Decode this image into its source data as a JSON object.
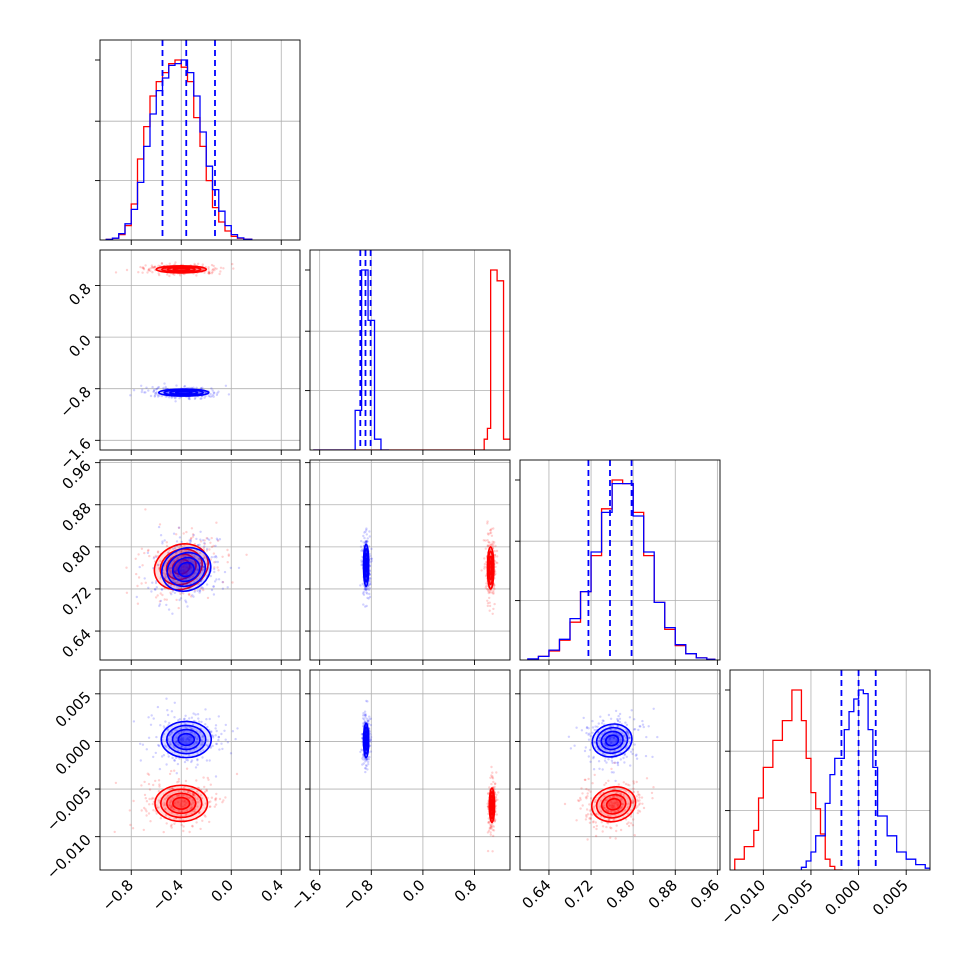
{
  "colors": {
    "series_a": "#ff0000",
    "series_b": "#0000ff",
    "grid": "#b0b0b0",
    "axis": "#000000"
  },
  "chart_data": {
    "type": "corner",
    "grid": true,
    "series": [
      {
        "key": "red",
        "color": "#ff0000"
      },
      {
        "key": "blue",
        "color": "#0000ff"
      }
    ],
    "params": [
      {
        "range": [
          -1.05,
          0.55
        ],
        "ticks": [
          -0.8,
          -0.4,
          0.0,
          0.4
        ],
        "tick_labels": [
          "−0.8",
          "−0.4",
          "0.0",
          "0.4"
        ]
      },
      {
        "range": [
          -1.75,
          1.35
        ],
        "ticks": [
          -1.6,
          -0.8,
          0.0,
          0.8
        ],
        "tick_labels": [
          "−1.6",
          "−0.8",
          "0.0",
          "0.8"
        ]
      },
      {
        "range": [
          0.585,
          0.965
        ],
        "ticks": [
          0.64,
          0.72,
          0.8,
          0.88,
          0.96
        ],
        "tick_labels": [
          "0.64",
          "0.72",
          "0.80",
          "0.88",
          "0.96"
        ]
      },
      {
        "range": [
          -0.0135,
          0.0075
        ],
        "ticks": [
          -0.01,
          -0.005,
          0.0,
          0.005
        ],
        "tick_labels": [
          "−0.010",
          "−0.005",
          "0.000",
          "0.005"
        ]
      }
    ],
    "quantiles_blue": [
      [
        -0.55,
        -0.36,
        -0.13
      ],
      [
        -0.97,
        -0.89,
        -0.81
      ],
      [
        0.715,
        0.756,
        0.797
      ],
      [
        -0.0018,
        0.0,
        0.0018
      ]
    ],
    "histograms": [
      {
        "red": [
          [
            -1.0,
            0.003
          ],
          [
            -0.95,
            0.01
          ],
          [
            -0.9,
            0.03
          ],
          [
            -0.85,
            0.08
          ],
          [
            -0.8,
            0.2
          ],
          [
            -0.75,
            0.45
          ],
          [
            -0.7,
            0.63
          ],
          [
            -0.65,
            0.8
          ],
          [
            -0.6,
            0.88
          ],
          [
            -0.55,
            0.93
          ],
          [
            -0.5,
            0.98
          ],
          [
            -0.45,
            1.0
          ],
          [
            -0.4,
            0.96
          ],
          [
            -0.35,
            0.88
          ],
          [
            -0.3,
            0.68
          ],
          [
            -0.25,
            0.52
          ],
          [
            -0.2,
            0.33
          ],
          [
            -0.15,
            0.18
          ],
          [
            -0.1,
            0.1
          ],
          [
            -0.05,
            0.05
          ],
          [
            0.0,
            0.02
          ],
          [
            0.05,
            0.01
          ],
          [
            0.1,
            0.005
          ]
        ],
        "blue": [
          [
            -1.0,
            0.003
          ],
          [
            -0.95,
            0.01
          ],
          [
            -0.9,
            0.035
          ],
          [
            -0.85,
            0.09
          ],
          [
            -0.8,
            0.17
          ],
          [
            -0.75,
            0.32
          ],
          [
            -0.7,
            0.52
          ],
          [
            -0.65,
            0.7
          ],
          [
            -0.6,
            0.83
          ],
          [
            -0.55,
            0.9
          ],
          [
            -0.5,
            0.97
          ],
          [
            -0.45,
            0.98
          ],
          [
            -0.4,
            1.0
          ],
          [
            -0.35,
            0.93
          ],
          [
            -0.3,
            0.8
          ],
          [
            -0.25,
            0.6
          ],
          [
            -0.2,
            0.41
          ],
          [
            -0.15,
            0.28
          ],
          [
            -0.1,
            0.16
          ],
          [
            -0.05,
            0.08
          ],
          [
            0.0,
            0.03
          ],
          [
            0.05,
            0.012
          ],
          [
            0.1,
            0.004
          ]
        ]
      },
      {
        "red": [
          [
            -1.7,
            0.0
          ],
          [
            0.9,
            0.0
          ],
          [
            0.95,
            0.06
          ],
          [
            1.0,
            0.12
          ],
          [
            1.05,
            1.0
          ],
          [
            1.15,
            0.94
          ],
          [
            1.25,
            0.06
          ]
        ],
        "blue": [
          [
            -1.7,
            0.0
          ],
          [
            -1.05,
            0.22
          ],
          [
            -0.95,
            1.0
          ],
          [
            -0.85,
            0.72
          ],
          [
            -0.75,
            0.06
          ],
          [
            -0.65,
            0.0
          ]
        ]
      },
      {
        "red": [
          [
            0.6,
            0.005
          ],
          [
            0.62,
            0.02
          ],
          [
            0.64,
            0.05
          ],
          [
            0.66,
            0.11
          ],
          [
            0.68,
            0.21
          ],
          [
            0.7,
            0.38
          ],
          [
            0.72,
            0.58
          ],
          [
            0.74,
            0.84
          ],
          [
            0.76,
            1.0
          ],
          [
            0.78,
            0.98
          ],
          [
            0.8,
            0.82
          ],
          [
            0.82,
            0.58
          ],
          [
            0.84,
            0.32
          ],
          [
            0.86,
            0.17
          ],
          [
            0.88,
            0.08
          ],
          [
            0.9,
            0.035
          ],
          [
            0.92,
            0.012
          ],
          [
            0.94,
            0.004
          ]
        ],
        "blue": [
          [
            0.6,
            0.006
          ],
          [
            0.62,
            0.02
          ],
          [
            0.64,
            0.055
          ],
          [
            0.66,
            0.115
          ],
          [
            0.68,
            0.23
          ],
          [
            0.7,
            0.38
          ],
          [
            0.72,
            0.6
          ],
          [
            0.74,
            0.82
          ],
          [
            0.76,
            0.98
          ],
          [
            0.78,
            0.98
          ],
          [
            0.8,
            0.8
          ],
          [
            0.82,
            0.6
          ],
          [
            0.84,
            0.32
          ],
          [
            0.86,
            0.18
          ],
          [
            0.88,
            0.085
          ],
          [
            0.9,
            0.035
          ],
          [
            0.92,
            0.012
          ],
          [
            0.94,
            0.004
          ]
        ]
      },
      {
        "red": [
          [
            -0.013,
            0.06
          ],
          [
            -0.012,
            0.13
          ],
          [
            -0.011,
            0.22
          ],
          [
            -0.0105,
            0.4
          ],
          [
            -0.01,
            0.57
          ],
          [
            -0.009,
            0.72
          ],
          [
            -0.008,
            0.83
          ],
          [
            -0.007,
            1.0
          ],
          [
            -0.0065,
            1.0
          ],
          [
            -0.006,
            0.83
          ],
          [
            -0.0055,
            0.62
          ],
          [
            -0.005,
            0.43
          ],
          [
            -0.0045,
            0.34
          ],
          [
            -0.004,
            0.2
          ],
          [
            -0.0035,
            0.06
          ],
          [
            -0.003,
            0.02
          ],
          [
            -0.0025,
            0.0
          ]
        ],
        "blue": [
          [
            -0.006,
            0.015
          ],
          [
            -0.0055,
            0.05
          ],
          [
            -0.005,
            0.1
          ],
          [
            -0.0045,
            0.19
          ],
          [
            -0.0035,
            0.37
          ],
          [
            -0.003,
            0.53
          ],
          [
            -0.0025,
            0.62
          ],
          [
            -0.0015,
            0.78
          ],
          [
            -0.001,
            0.88
          ],
          [
            -0.0005,
            0.95
          ],
          [
            0.0,
            1.0
          ],
          [
            0.0005,
            0.98
          ],
          [
            0.001,
            0.78
          ],
          [
            0.0015,
            0.57
          ],
          [
            0.002,
            0.3
          ],
          [
            0.003,
            0.19
          ],
          [
            0.004,
            0.1
          ],
          [
            0.005,
            0.06
          ],
          [
            0.006,
            0.03
          ],
          [
            0.007,
            0.01
          ]
        ]
      }
    ],
    "blobs": {
      "1-0": {
        "red": [
          -0.4,
          1.05,
          0.2,
          0.055,
          0.0
        ],
        "blue": [
          -0.38,
          -0.86,
          0.2,
          0.055,
          0.0
        ]
      },
      "2-0": {
        "red": [
          -0.4,
          0.762,
          0.22,
          0.042,
          -0.5
        ],
        "blue": [
          -0.36,
          0.757,
          0.2,
          0.04,
          -0.5
        ]
      },
      "2-1": {
        "red": [
          1.05,
          0.76,
          0.05,
          0.04,
          0.0
        ],
        "blue": [
          -0.88,
          0.765,
          0.04,
          0.04,
          0.0
        ]
      },
      "3-0": {
        "red": [
          -0.4,
          -0.0065,
          0.21,
          0.0019,
          0.0
        ],
        "blue": [
          -0.36,
          0.0002,
          0.2,
          0.0019,
          0.0
        ]
      },
      "3-1": {
        "red": [
          1.07,
          -0.0067,
          0.04,
          0.0018,
          0.0
        ],
        "blue": [
          -0.88,
          0.0001,
          0.04,
          0.0018,
          0.0
        ]
      },
      "3-2": {
        "red": [
          0.763,
          -0.0066,
          0.042,
          0.0018,
          -0.3
        ],
        "blue": [
          0.76,
          0.0001,
          0.038,
          0.0017,
          -0.3
        ]
      }
    }
  }
}
